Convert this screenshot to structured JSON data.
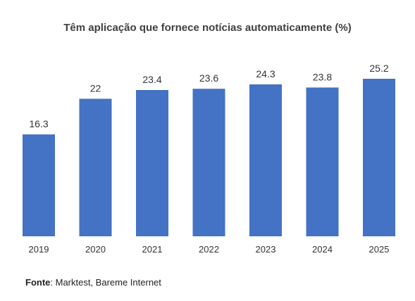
{
  "chart_data": {
    "type": "bar",
    "title": "Têm aplicação que fornece notícias automaticamente (%)",
    "categories": [
      "2019",
      "2020",
      "2021",
      "2022",
      "2023",
      "2024",
      "2025"
    ],
    "values": [
      16.3,
      22,
      23.4,
      23.6,
      24.3,
      23.8,
      25.2
    ],
    "value_labels": [
      "16.3",
      "22",
      "23.4",
      "23.6",
      "24.3",
      "23.8",
      "25.2"
    ],
    "xlabel": "",
    "ylabel": "",
    "ylim": [
      0,
      25.2
    ],
    "grid": false,
    "legend": "none",
    "bar_color": "#4472C4"
  },
  "source": {
    "label": "Fonte",
    "text": ": Marktest, Bareme Internet"
  }
}
